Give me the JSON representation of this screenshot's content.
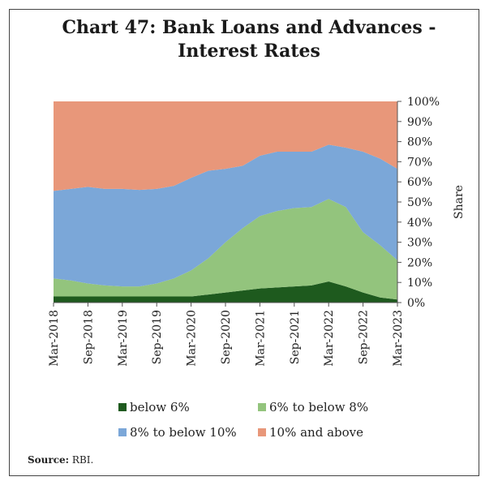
{
  "chart_data": {
    "type": "area",
    "stacked": true,
    "title": [
      "Chart 47: Bank Loans and Advances -",
      "Interest Rates"
    ],
    "ylabel": "Share",
    "ylim": [
      0,
      100
    ],
    "ytick_labels": [
      "0%",
      "10%",
      "20%",
      "30%",
      "40%",
      "50%",
      "60%",
      "70%",
      "80%",
      "90%",
      "100%"
    ],
    "xtick_labels": [
      "Mar-2018",
      "Sep-2018",
      "Mar-2019",
      "Sep-2019",
      "Mar-2020",
      "Sep-2020",
      "Mar-2021",
      "Sep-2021",
      "Mar-2022",
      "Sep-2022",
      "Mar-2023"
    ],
    "x": [
      "Mar-2018",
      "Jun-2018",
      "Sep-2018",
      "Dec-2018",
      "Mar-2019",
      "Jun-2019",
      "Sep-2019",
      "Dec-2019",
      "Mar-2020",
      "Jun-2020",
      "Sep-2020",
      "Dec-2020",
      "Mar-2021",
      "Jun-2021",
      "Sep-2021",
      "Dec-2021",
      "Mar-2022",
      "Jun-2022",
      "Sep-2022",
      "Dec-2022",
      "Mar-2023"
    ],
    "series": [
      {
        "name": "below 6%",
        "color": "#1e5a1e",
        "values": [
          3,
          3,
          3,
          3,
          3,
          3,
          3,
          3,
          3,
          4,
          5,
          6,
          7,
          7.5,
          8,
          8.5,
          10.5,
          8,
          5,
          2.5,
          1.5
        ]
      },
      {
        "name": "6% to below 8%",
        "color": "#93c47d",
        "values": [
          9,
          8,
          6.5,
          5.5,
          5,
          5,
          6.5,
          9,
          13,
          18,
          25,
          31,
          36,
          38,
          39,
          39,
          41,
          39.5,
          30,
          26,
          19.5
        ]
      },
      {
        "name": "8% to below 10%",
        "color": "#7ba7d8",
        "values": [
          43.5,
          45.5,
          48,
          48,
          48.5,
          48,
          47,
          46,
          46,
          43.5,
          36.5,
          31,
          30,
          29.5,
          28,
          27.5,
          27,
          29.5,
          40,
          43,
          45.5
        ]
      },
      {
        "name": "10% and above",
        "color": "#e8977a",
        "values": [
          44.5,
          43.5,
          42.5,
          43.5,
          43.5,
          44,
          43.5,
          42,
          38,
          34.5,
          33.5,
          32,
          27,
          25,
          25,
          25,
          21.5,
          23,
          25,
          28.5,
          33.5
        ]
      }
    ],
    "legend_position": "bottom",
    "grid": false
  },
  "source": {
    "label": "Source:",
    "text": "RBI."
  }
}
